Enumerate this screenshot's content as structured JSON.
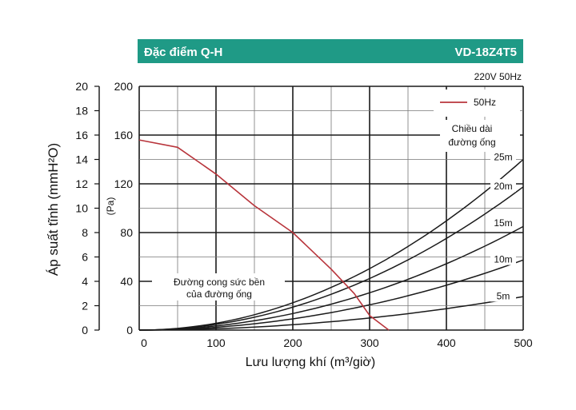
{
  "header": {
    "left": "Đặc điểm Q-H",
    "right": "VD-18Z4T5"
  },
  "power_note": "220V 50Hz",
  "chart_data": {
    "type": "line",
    "xlabel": "Lưu lượng khí (m³/giờ)",
    "ylabel_left": "Áp suất tĩnh (mmH²O)",
    "ylabel_right": "(Pa)",
    "xlim": [
      0,
      500
    ],
    "ylim": [
      0,
      200
    ],
    "ylim_mm": [
      0,
      20
    ],
    "x_ticks": [
      "0",
      "100",
      "200",
      "300",
      "400",
      "500"
    ],
    "y_ticks": [
      "0",
      "40",
      "80",
      "120",
      "160",
      "200"
    ],
    "y_ticks_mm": [
      "0",
      "2",
      "4",
      "6",
      "8",
      "10",
      "12",
      "14",
      "16",
      "18",
      "20"
    ],
    "grid": true,
    "legend": {
      "position": "top-right",
      "label": "50Hz",
      "color": "#b8343b"
    },
    "pipe_length_title": [
      "Chiều dài",
      "đường ống"
    ],
    "pipe_curve_note": [
      "Đường cong sức bền",
      "của đường ống"
    ],
    "fan_curve": {
      "name": "50Hz",
      "x": [
        0,
        50,
        100,
        150,
        200,
        250,
        280,
        300,
        325
      ],
      "y": [
        156,
        150,
        128,
        102,
        80,
        50,
        30,
        12,
        0
      ]
    },
    "pipe_curves": [
      {
        "label": "25m",
        "coef": 0.00056
      },
      {
        "label": "20m",
        "coef": 0.00047
      },
      {
        "label": "15m",
        "coef": 0.00034
      },
      {
        "label": "10m",
        "coef": 0.00023
      },
      {
        "label": "5m",
        "coef": 0.00011
      }
    ],
    "pipe_label_y": [
      140,
      116,
      86,
      56,
      26
    ]
  }
}
